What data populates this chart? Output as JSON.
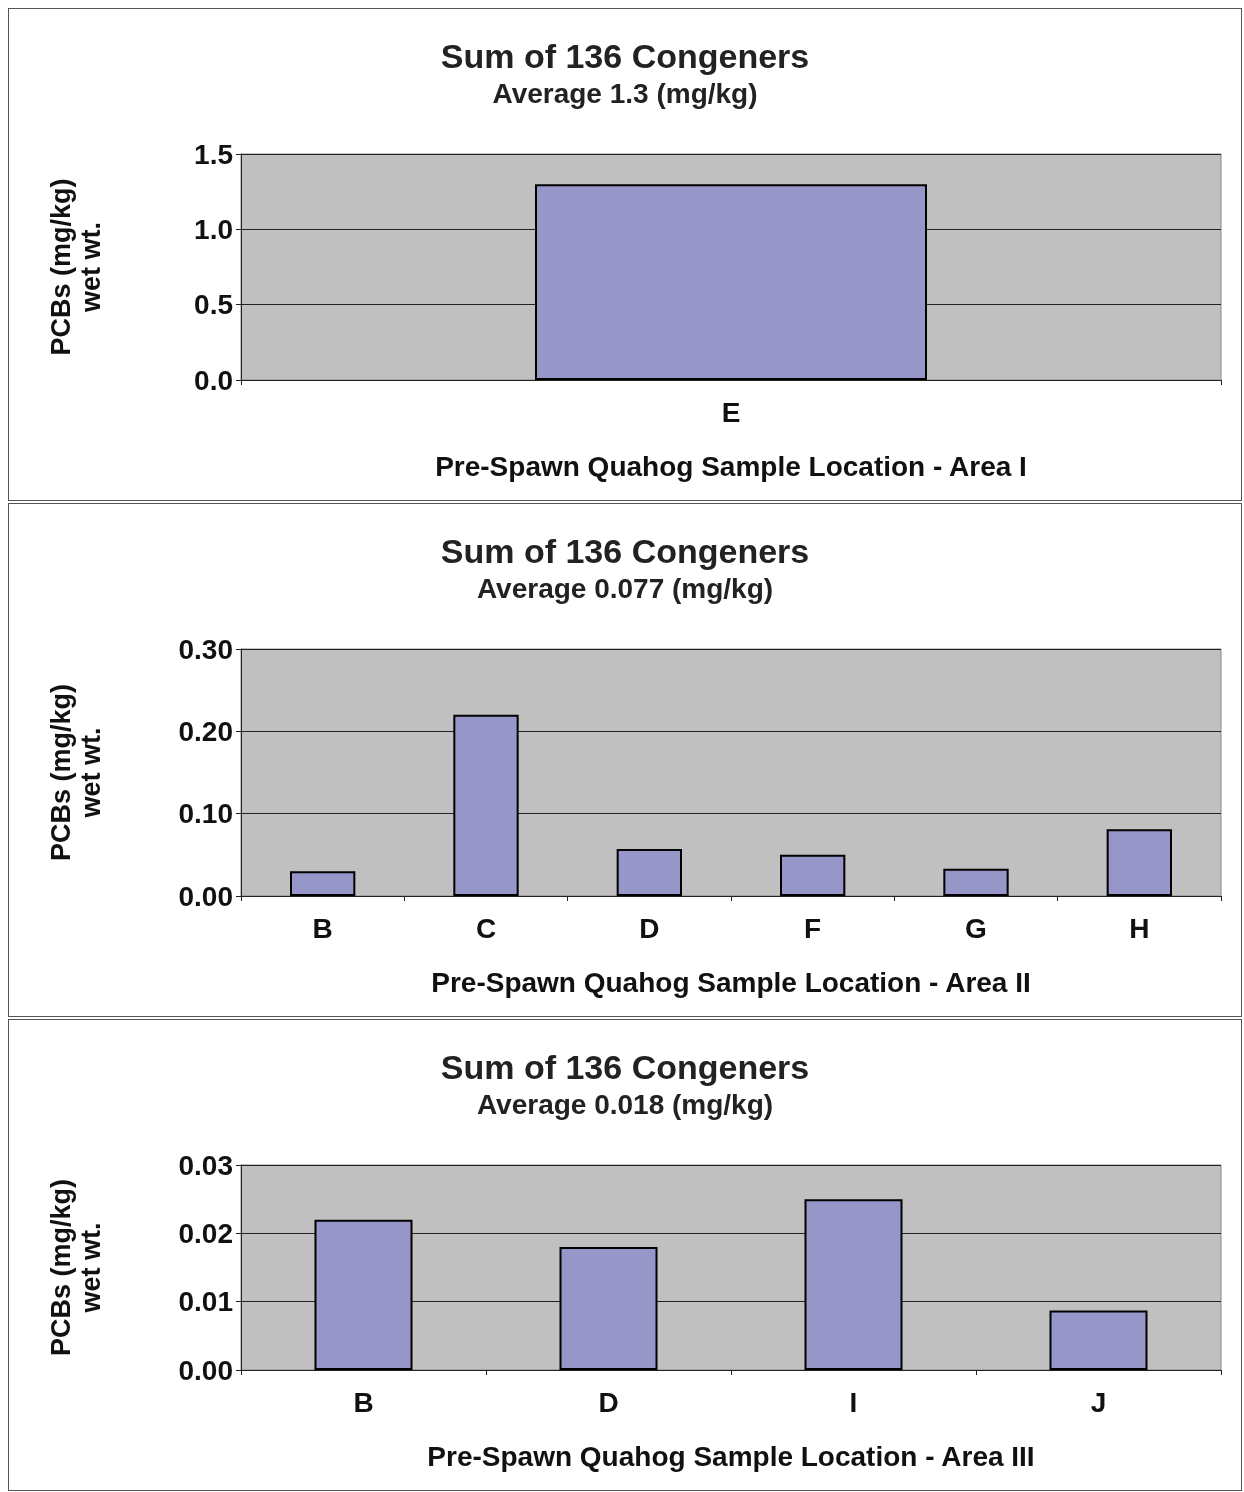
{
  "chart_data": [
    {
      "type": "bar",
      "title": "Sum of 136 Congeners",
      "subtitle": "Average 1.3 (mg/kg)",
      "xlabel": "Pre-Spawn Quahog Sample Location - Area I",
      "ylabel": "PCBs (mg/kg)\nwet wt.",
      "categories": [
        "E"
      ],
      "values": [
        1.3
      ],
      "color": "#9696c8",
      "ylim": [
        0,
        1.5
      ],
      "yticks": [
        {
          "value": 0,
          "label": "0.0"
        },
        {
          "value": 0.5,
          "label": "0.5"
        },
        {
          "value": 1,
          "label": "1.0"
        },
        {
          "value": 1.5,
          "label": "1.5"
        }
      ],
      "grid": "y"
    },
    {
      "type": "bar",
      "title": "Sum of 136 Congeners",
      "subtitle": "Average 0.077 (mg/kg)",
      "xlabel": "Pre-Spawn Quahog Sample Location - Area II",
      "ylabel": "PCBs (mg/kg)\nwet wt.",
      "categories": [
        "B",
        "C",
        "D",
        "F",
        "G",
        "H"
      ],
      "values": [
        0.03,
        0.22,
        0.057,
        0.05,
        0.033,
        0.081
      ],
      "color": "#9696c8",
      "ylim": [
        0,
        0.3
      ],
      "yticks": [
        {
          "value": 0,
          "label": "0.00"
        },
        {
          "value": 0.1,
          "label": "0.10"
        },
        {
          "value": 0.2,
          "label": "0.20"
        },
        {
          "value": 0.3,
          "label": "0.30"
        }
      ],
      "grid": "y"
    },
    {
      "type": "bar",
      "title": "Sum of 136 Congeners",
      "subtitle": "Average 0.018 (mg/kg)",
      "xlabel": "Pre-Spawn Quahog Sample Location - Area III",
      "ylabel": "PCBs (mg/kg)\nwet wt.",
      "categories": [
        "B",
        "D",
        "I",
        "J"
      ],
      "values": [
        0.022,
        0.018,
        0.025,
        0.0087
      ],
      "color": "#9696c8",
      "ylim": [
        0,
        0.03
      ],
      "yticks": [
        {
          "value": 0,
          "label": "0.00"
        },
        {
          "value": 0.01,
          "label": "0.01"
        },
        {
          "value": 0.02,
          "label": "0.02"
        },
        {
          "value": 0.03,
          "label": "0.03"
        }
      ],
      "grid": "y"
    }
  ]
}
